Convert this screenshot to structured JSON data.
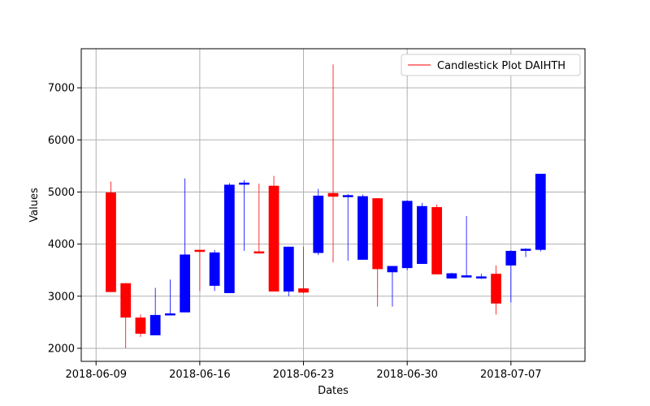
{
  "chart_data": {
    "type": "candlestick",
    "title": "",
    "xlabel": "Dates",
    "ylabel": "Values",
    "legend": {
      "label": "Candlestick Plot DAIHTH",
      "placement": "top-right"
    },
    "grid": true,
    "xlim": [
      "2018-06-08",
      "2018-07-12"
    ],
    "ylim": [
      1750,
      7750
    ],
    "xticks": [
      "2018-06-09",
      "2018-06-16",
      "2018-06-23",
      "2018-06-30",
      "2018-07-07"
    ],
    "yticks": [
      2000,
      3000,
      4000,
      5000,
      6000,
      7000
    ],
    "colors": {
      "up": "#0000ff",
      "down": "#ff0000"
    },
    "series": [
      {
        "date": "2018-06-10",
        "open": 4990,
        "high": 5200,
        "low": 3080,
        "close": 3080
      },
      {
        "date": "2018-06-11",
        "open": 3250,
        "high": 3250,
        "low": 2000,
        "close": 2590
      },
      {
        "date": "2018-06-12",
        "open": 2590,
        "high": 2650,
        "low": 2220,
        "close": 2280
      },
      {
        "date": "2018-06-13",
        "open": 2250,
        "high": 3160,
        "low": 2250,
        "close": 2640
      },
      {
        "date": "2018-06-14",
        "open": 2640,
        "high": 3320,
        "low": 2640,
        "close": 2670
      },
      {
        "date": "2018-06-15",
        "open": 2690,
        "high": 5260,
        "low": 2690,
        "close": 3800
      },
      {
        "date": "2018-06-16",
        "open": 3890,
        "high": 3890,
        "low": 3100,
        "close": 3860
      },
      {
        "date": "2018-06-17",
        "open": 3200,
        "high": 3890,
        "low": 3100,
        "close": 3840
      },
      {
        "date": "2018-06-18",
        "open": 3060,
        "high": 5170,
        "low": 3060,
        "close": 5140
      },
      {
        "date": "2018-06-19",
        "open": 5160,
        "high": 5230,
        "low": 3870,
        "close": 5180
      },
      {
        "date": "2018-06-20",
        "open": 3860,
        "high": 5160,
        "low": 3820,
        "close": 3840
      },
      {
        "date": "2018-06-21",
        "open": 5120,
        "high": 5310,
        "low": 3090,
        "close": 3090
      },
      {
        "date": "2018-06-22",
        "open": 3090,
        "high": 3950,
        "low": 3000,
        "close": 3950
      },
      {
        "date": "2018-06-23",
        "open": 3150,
        "high": 3950,
        "low": 3060,
        "close": 3070
      },
      {
        "date": "2018-06-24",
        "open": 3830,
        "high": 5060,
        "low": 3790,
        "close": 4930
      },
      {
        "date": "2018-06-25",
        "open": 4980,
        "high": 7450,
        "low": 3650,
        "close": 4910
      },
      {
        "date": "2018-06-26",
        "open": 4910,
        "high": 4960,
        "low": 3680,
        "close": 4940
      },
      {
        "date": "2018-06-27",
        "open": 3700,
        "high": 4950,
        "low": 3700,
        "close": 4920
      },
      {
        "date": "2018-06-28",
        "open": 4880,
        "high": 4880,
        "low": 2800,
        "close": 3520
      },
      {
        "date": "2018-06-29",
        "open": 3460,
        "high": 3580,
        "low": 2800,
        "close": 3580
      },
      {
        "date": "2018-06-30",
        "open": 3540,
        "high": 4840,
        "low": 3500,
        "close": 4830
      },
      {
        "date": "2018-07-01",
        "open": 3620,
        "high": 4790,
        "low": 3620,
        "close": 4730
      },
      {
        "date": "2018-07-02",
        "open": 4710,
        "high": 4760,
        "low": 3420,
        "close": 3420
      },
      {
        "date": "2018-07-03",
        "open": 3340,
        "high": 3450,
        "low": 3340,
        "close": 3440
      },
      {
        "date": "2018-07-04",
        "open": 3360,
        "high": 4540,
        "low": 3360,
        "close": 3400
      },
      {
        "date": "2018-07-05",
        "open": 3340,
        "high": 3430,
        "low": 3330,
        "close": 3380
      },
      {
        "date": "2018-07-06",
        "open": 3430,
        "high": 3590,
        "low": 2650,
        "close": 2860
      },
      {
        "date": "2018-07-07",
        "open": 3590,
        "high": 3880,
        "low": 2880,
        "close": 3870
      },
      {
        "date": "2018-07-08",
        "open": 3880,
        "high": 3920,
        "low": 3750,
        "close": 3910
      },
      {
        "date": "2018-07-09",
        "open": 3890,
        "high": 5350,
        "low": 3860,
        "close": 5350
      }
    ]
  }
}
